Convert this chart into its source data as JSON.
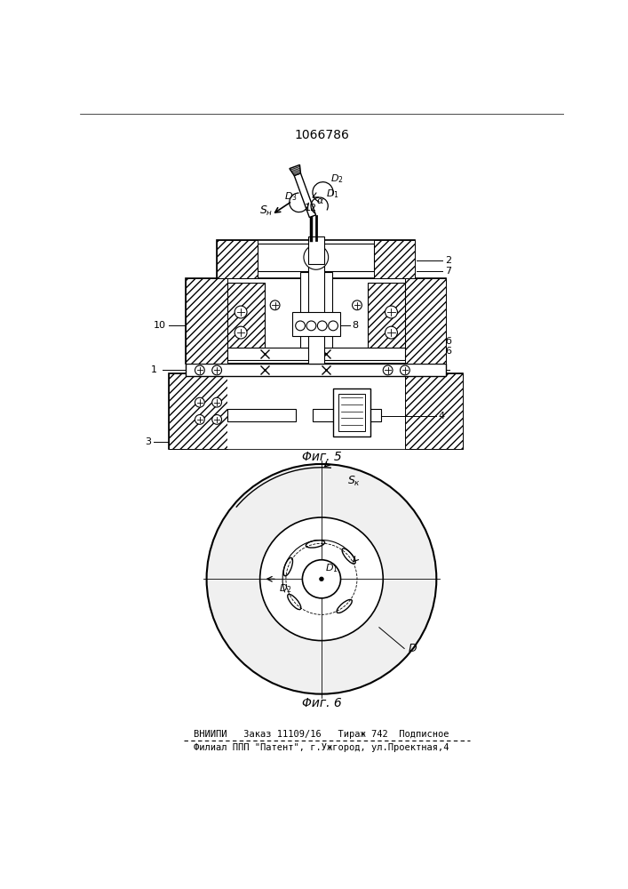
{
  "patent_number": "1066786",
  "fig5_label": "Φиг. 5",
  "fig6_label": "Φиг. 6",
  "footer_line1": "ВНИИПИ   Заказ 11109/16   Тираж 742  Подписное",
  "footer_line2": "Филиал ППП \"Патент\", г.Ужгород, ул.Проектная,4",
  "bg_color": "#ffffff"
}
